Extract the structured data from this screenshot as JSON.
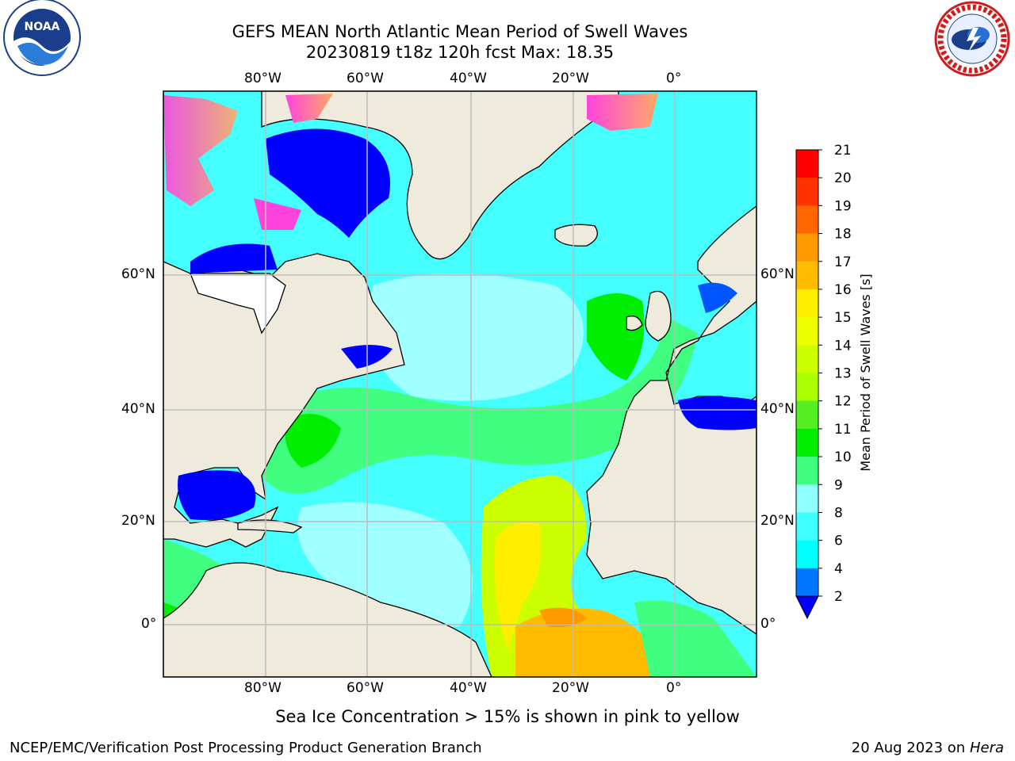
{
  "header": {
    "title_line1": "GEFS MEAN North Atlantic Mean Period of Swell Waves",
    "title_line2": "20230819 t18z 120h fcst   Max: 18.35"
  },
  "map": {
    "lon_ticks": [
      "80°W",
      "60°W",
      "40°W",
      "20°W",
      "0°"
    ],
    "lat_ticks": [
      "60°N",
      "40°N",
      "20°N",
      "0°"
    ],
    "note": "Sea Ice Concentration > 15% is shown in pink to yellow"
  },
  "colorbar": {
    "label": "Mean Period of Swell Waves [s]",
    "levels": [
      "2",
      "4",
      "6",
      "8",
      "9",
      "10",
      "11",
      "12",
      "13",
      "14",
      "15",
      "16",
      "17",
      "18",
      "19",
      "20",
      "21"
    ],
    "colors": [
      "#0000ff",
      "#0077ff",
      "#00ffff",
      "#40ffff",
      "#90ffff",
      "#40ff80",
      "#00ee00",
      "#55ee22",
      "#aaff00",
      "#ccff00",
      "#eeff00",
      "#ffee00",
      "#ffbb00",
      "#ff9900",
      "#ff6600",
      "#ff3300",
      "#ff0000"
    ]
  },
  "footer": {
    "left": "NCEP/EMC/Verification Post Processing Product Generation Branch",
    "right_date": "20 Aug 2023 on",
    "right_host": "Hera"
  },
  "logos": {
    "left": "noaa-logo-icon",
    "right": "nws-logo-icon"
  },
  "colors": {
    "land": "#eeebdc",
    "ocean_base": "#45ffff",
    "ocean_light": "#a0ffff",
    "grid": "#bbbbbb"
  }
}
